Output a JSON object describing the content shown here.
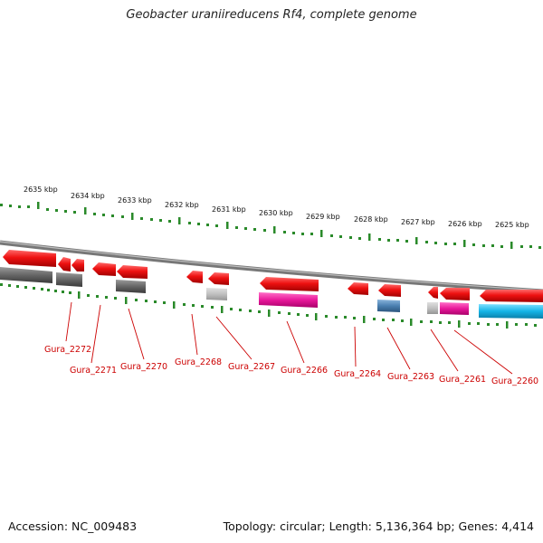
{
  "title": "Geobacter uraniireducens Rf4, complete genome",
  "footer": {
    "accession": "Accession: NC_009483",
    "summary": "Topology: circular; Length: 5,136,364 bp; Genes: 4,414"
  },
  "kbp_labels": [
    "2635 kbp",
    "2634 kbp",
    "2633 kbp",
    "2632 kbp",
    "2631 kbp",
    "2630 kbp",
    "2629 kbp",
    "2628 kbp",
    "2627 kbp",
    "2626 kbp",
    "2625 kbp"
  ],
  "gene_labels": [
    "Gura_2272",
    "Gura_2271",
    "Gura_2270",
    "Gura_2268",
    "Gura_2267",
    "Gura_2266",
    "Gura_2264",
    "Gura_2263",
    "Gura_2261",
    "Gura_2260"
  ],
  "colors": {
    "cds": "#ee1111",
    "gray_dark": "#666666",
    "gray_light": "#c0c0c0",
    "magenta": "#e8189a",
    "steelblue": "#4a7fb0",
    "cyan": "#14b4e6",
    "tick": "#2a8a2a",
    "label": "#cc0000"
  }
}
